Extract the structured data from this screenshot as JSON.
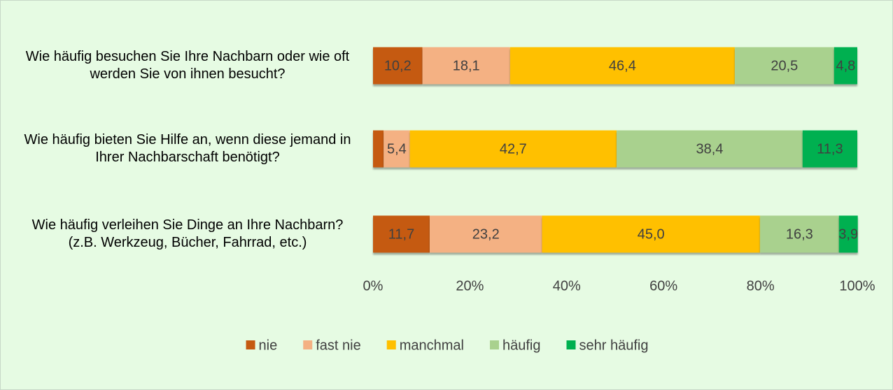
{
  "chart_data": {
    "type": "stacked_barh",
    "categories": [
      "Wie häufig besuchen Sie Ihre Nachbarn oder wie oft werden Sie von ihnen besucht?",
      "Wie häufig bieten Sie Hilfe an, wenn diese jemand in Ihrer Nachbarschaft benötigt?",
      "Wie häufig verleihen Sie Dinge an Ihre Nachbarn? (z.B. Werkzeug, Bücher, Fahrrad, etc.)"
    ],
    "series": [
      {
        "name": "nie",
        "color": "#c55a11",
        "values": [
          10.2,
          2.2,
          11.7
        ],
        "value_labels": [
          "10,2",
          null,
          "11,7"
        ]
      },
      {
        "name": "fast nie",
        "color": "#f4b183",
        "values": [
          18.1,
          5.4,
          23.2
        ],
        "value_labels": [
          "18,1",
          "5,4",
          "23,2"
        ]
      },
      {
        "name": "manchmal",
        "color": "#ffc000",
        "values": [
          46.4,
          42.7,
          45
        ],
        "value_labels": [
          "46,4",
          "42,7",
          "45,0"
        ]
      },
      {
        "name": "häufig",
        "color": "#a9d18e",
        "values": [
          20.5,
          38.4,
          16.3
        ],
        "value_labels": [
          "20,5",
          "38,4",
          "16,3"
        ]
      },
      {
        "name": "sehr häufig",
        "color": "#00b050",
        "values": [
          4.8,
          11.3,
          3.9
        ],
        "value_labels": [
          "4,8",
          "11,3",
          "3,9"
        ]
      }
    ],
    "xlim": [
      0,
      100
    ],
    "xticks": [
      {
        "value": 0,
        "label": "0%"
      },
      {
        "value": 20,
        "label": "20%"
      },
      {
        "value": 40,
        "label": "40%"
      },
      {
        "value": 60,
        "label": "60%"
      },
      {
        "value": 80,
        "label": "80%"
      },
      {
        "value": 100,
        "label": "100%"
      }
    ],
    "legend": "bottom"
  }
}
